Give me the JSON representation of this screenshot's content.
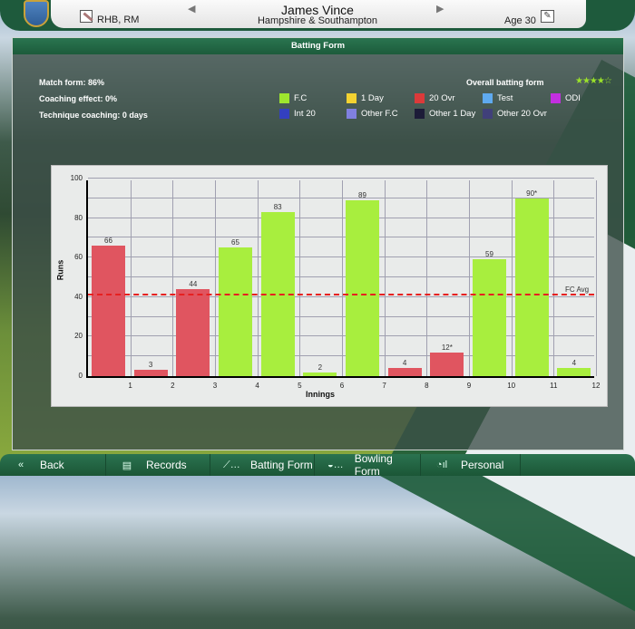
{
  "header": {
    "player_name": "James Vince",
    "team": "Hampshire & Southampton",
    "role": "RHB, RM",
    "age": "Age 30",
    "prev_icon": "◀",
    "next_icon": "▶",
    "edit_icon": "✎"
  },
  "panel": {
    "title": "Batting Form",
    "stats": {
      "match_form": "Match form: 86%",
      "coaching_effect": "Coaching effect: 0%",
      "technique_coaching": "Technique coaching: 0 days"
    },
    "overall_label": "Overall batting form",
    "overall_stars": "★★★★☆"
  },
  "legend": [
    {
      "label": "F.C",
      "color": "#9ee62e"
    },
    {
      "label": "1 Day",
      "color": "#f3d231"
    },
    {
      "label": "20 Ovr",
      "color": "#dc3a3a"
    },
    {
      "label": "Test",
      "color": "#5faaf0"
    },
    {
      "label": "ODI",
      "color": "#c22fe0"
    },
    {
      "label": "Int 20",
      "color": "#3340c0"
    },
    {
      "label": "Other F.C",
      "color": "#8080e0"
    },
    {
      "label": "Other 1 Day",
      "color": "#1c1c38"
    },
    {
      "label": "Other 20 Ovr",
      "color": "#40407a"
    }
  ],
  "chart_data": {
    "type": "bar",
    "title": "Batting Form",
    "xlabel": "Innings",
    "ylabel": "Runs",
    "ylim": [
      0,
      100
    ],
    "yticks": [
      0,
      20,
      40,
      60,
      80,
      100
    ],
    "categories": [
      "1",
      "2",
      "3",
      "4",
      "5",
      "6",
      "7",
      "8",
      "9",
      "10",
      "11",
      "12"
    ],
    "values": [
      66,
      3,
      44,
      65,
      83,
      2,
      89,
      4,
      12,
      59,
      90,
      4
    ],
    "labels": [
      "66",
      "3",
      "44",
      "65",
      "83",
      "2",
      "89",
      "4",
      "12*",
      "59",
      "90*",
      "4"
    ],
    "formats": [
      "20 Ovr",
      "20 Ovr",
      "20 Ovr",
      "F.C",
      "F.C",
      "F.C",
      "F.C",
      "20 Ovr",
      "20 Ovr",
      "F.C",
      "F.C",
      "F.C"
    ],
    "reference_line": {
      "label": "FC Avg",
      "value": 41,
      "color": "#e62020"
    },
    "grid": true
  },
  "footer": {
    "tabs": [
      {
        "label": "Back",
        "icon": "«"
      },
      {
        "label": "Records",
        "icon": "▤"
      },
      {
        "label": "Batting Form",
        "icon": "⟋…"
      },
      {
        "label": "Bowling Form",
        "icon": "◒…"
      },
      {
        "label": "Personal",
        "icon": "◔ıl"
      }
    ]
  }
}
